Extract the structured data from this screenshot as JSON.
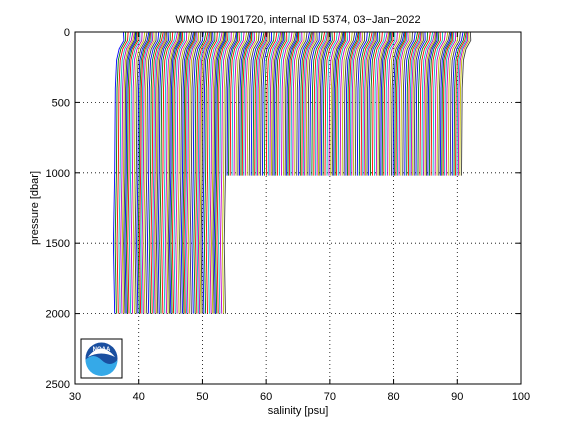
{
  "chart_data": {
    "type": "line",
    "title": "WMO ID 1901720, internal ID 5374, 03−Jan−2022",
    "xlabel": "salinity [psu]",
    "ylabel": "pressure [dbar]",
    "xlim": [
      30,
      100
    ],
    "ylim": [
      2500,
      0
    ],
    "y_reversed": true,
    "grid": true,
    "grid_style": "dotted",
    "xticks": [
      "30",
      "40",
      "50",
      "60",
      "70",
      "80",
      "90",
      "100"
    ],
    "yticks": [
      "0",
      "500",
      "1000",
      "1500",
      "2000",
      "2500"
    ],
    "series_colors": [
      "#0000ff",
      "#008000",
      "#ff0000",
      "#00bfbf",
      "#bf00bf",
      "#bfbf00",
      "#404040"
    ],
    "profile_groups": [
      {
        "profiles": 70,
        "deep_offset_start": 36.3,
        "offset_step": 0.25,
        "surface_salinity_start": 37.8,
        "max_pressure": 2000,
        "shape": [
          [
            0,
            1.55
          ],
          [
            60,
            1.45
          ],
          [
            120,
            0.7
          ],
          [
            200,
            0.3
          ],
          [
            400,
            0.1
          ],
          [
            700,
            0.05
          ],
          [
            1000,
            0.0
          ],
          [
            1500,
            -0.2
          ],
          [
            2000,
            0.0
          ]
        ]
      },
      {
        "profiles": 140,
        "deep_offset_start": 53.9,
        "offset_step": 0.265,
        "surface_salinity_start": 55.3,
        "max_pressure": 1020,
        "shape": [
          [
            0,
            1.55
          ],
          [
            60,
            1.45
          ],
          [
            120,
            0.7
          ],
          [
            200,
            0.3
          ],
          [
            400,
            0.1
          ],
          [
            700,
            0.05
          ],
          [
            1000,
            0.0
          ],
          [
            1020,
            0.0
          ]
        ]
      }
    ],
    "logo": {
      "label": "NOAA"
    }
  }
}
